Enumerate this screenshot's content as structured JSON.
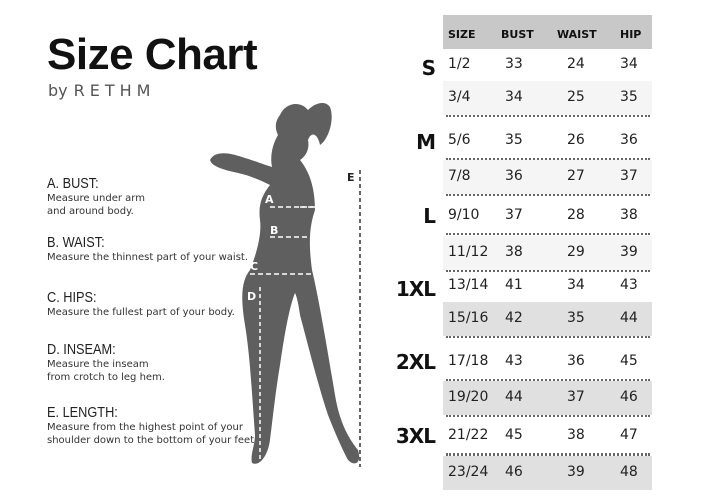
{
  "title": "Size Chart",
  "byline": {
    "by": "by",
    "brand": "RETHM"
  },
  "measurements": [
    {
      "heading": "A. BUST:",
      "desc": "Measure under arm\nand around body."
    },
    {
      "heading": "B. WAIST:",
      "desc": "Measure the thinnest part of your waist."
    },
    {
      "heading": "C. HIPS:",
      "desc": "Measure the fullest part of your body."
    },
    {
      "heading": "D. INSEAM:",
      "desc": "Measure the inseam\nfrom crotch to leg hem."
    },
    {
      "heading": "E. LENGTH:",
      "desc": "Measure from the highest point of your\nshoulder down to the bottom of your feet."
    }
  ],
  "figure_labels": {
    "a": "A",
    "b": "B",
    "c": "C",
    "d": "D",
    "e": "E"
  },
  "table": {
    "headers": [
      "SIZE",
      "BUST",
      "WAIST",
      "HIP"
    ],
    "groups": [
      "S",
      "M",
      "L",
      "1XL",
      "2XL",
      "3XL"
    ],
    "rows": [
      [
        "1/2",
        "33",
        "24",
        "34"
      ],
      [
        "3/4",
        "34",
        "25",
        "35"
      ],
      [
        "5/6",
        "35",
        "26",
        "36"
      ],
      [
        "7/8",
        "36",
        "27",
        "37"
      ],
      [
        "9/10",
        "37",
        "28",
        "38"
      ],
      [
        "11/12",
        "38",
        "29",
        "39"
      ],
      [
        "13/14",
        "41",
        "34",
        "43"
      ],
      [
        "15/16",
        "42",
        "35",
        "44"
      ],
      [
        "17/18",
        "43",
        "36",
        "45"
      ],
      [
        "19/20",
        "44",
        "37",
        "46"
      ],
      [
        "21/22",
        "45",
        "38",
        "47"
      ],
      [
        "23/24",
        "46",
        "39",
        "48"
      ]
    ]
  },
  "colors": {
    "silhouette": "#5f5f5f",
    "header_bg": "#c8c8c8",
    "shade_light": "#f5f5f5",
    "shade_dark": "#e0e0e0"
  }
}
